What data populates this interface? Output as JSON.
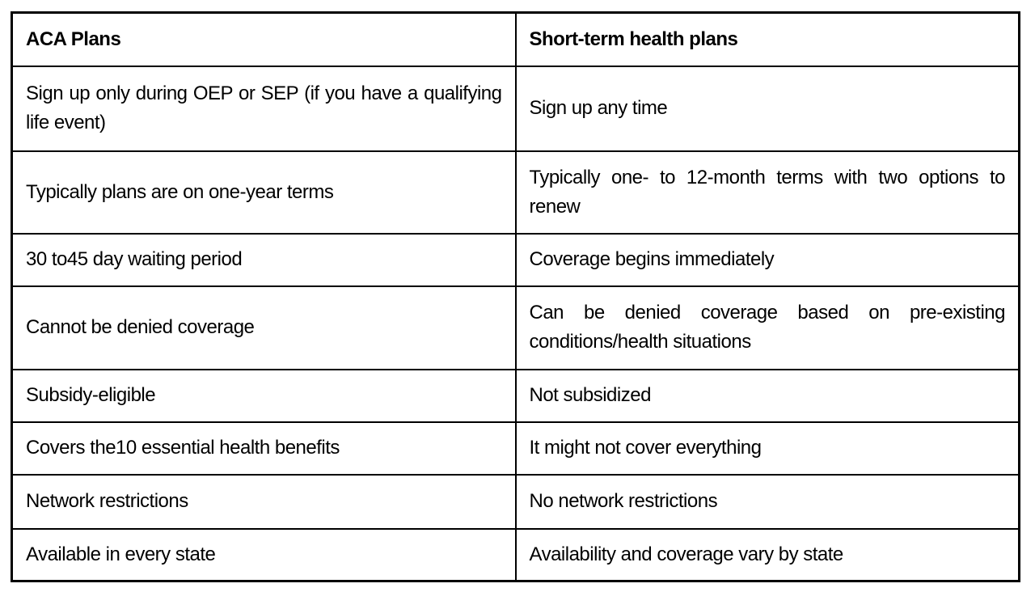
{
  "table": {
    "headers": [
      "ACA Plans",
      "Short-term health plans"
    ],
    "rows": [
      [
        "Sign up only during OEP or SEP (if you have a qualifying life event)",
        "Sign up any time"
      ],
      [
        "Typically plans are on one-year terms",
        "Typically one- to 12-month terms with two options to renew"
      ],
      [
        "30 to45 day waiting period",
        "Coverage begins immediately"
      ],
      [
        "Cannot be denied coverage",
        "Can be denied coverage based on pre-existing conditions/health situations"
      ],
      [
        "Subsidy-eligible",
        "Not subsidized"
      ],
      [
        "Covers the10 essential health benefits",
        "It might not cover everything"
      ],
      [
        "Network restrictions",
        "No network restrictions"
      ],
      [
        "Available in every state",
        "Availability and coverage vary by state"
      ]
    ],
    "colors": {
      "border": "#000000",
      "text": "#000000",
      "background": "#ffffff"
    }
  }
}
